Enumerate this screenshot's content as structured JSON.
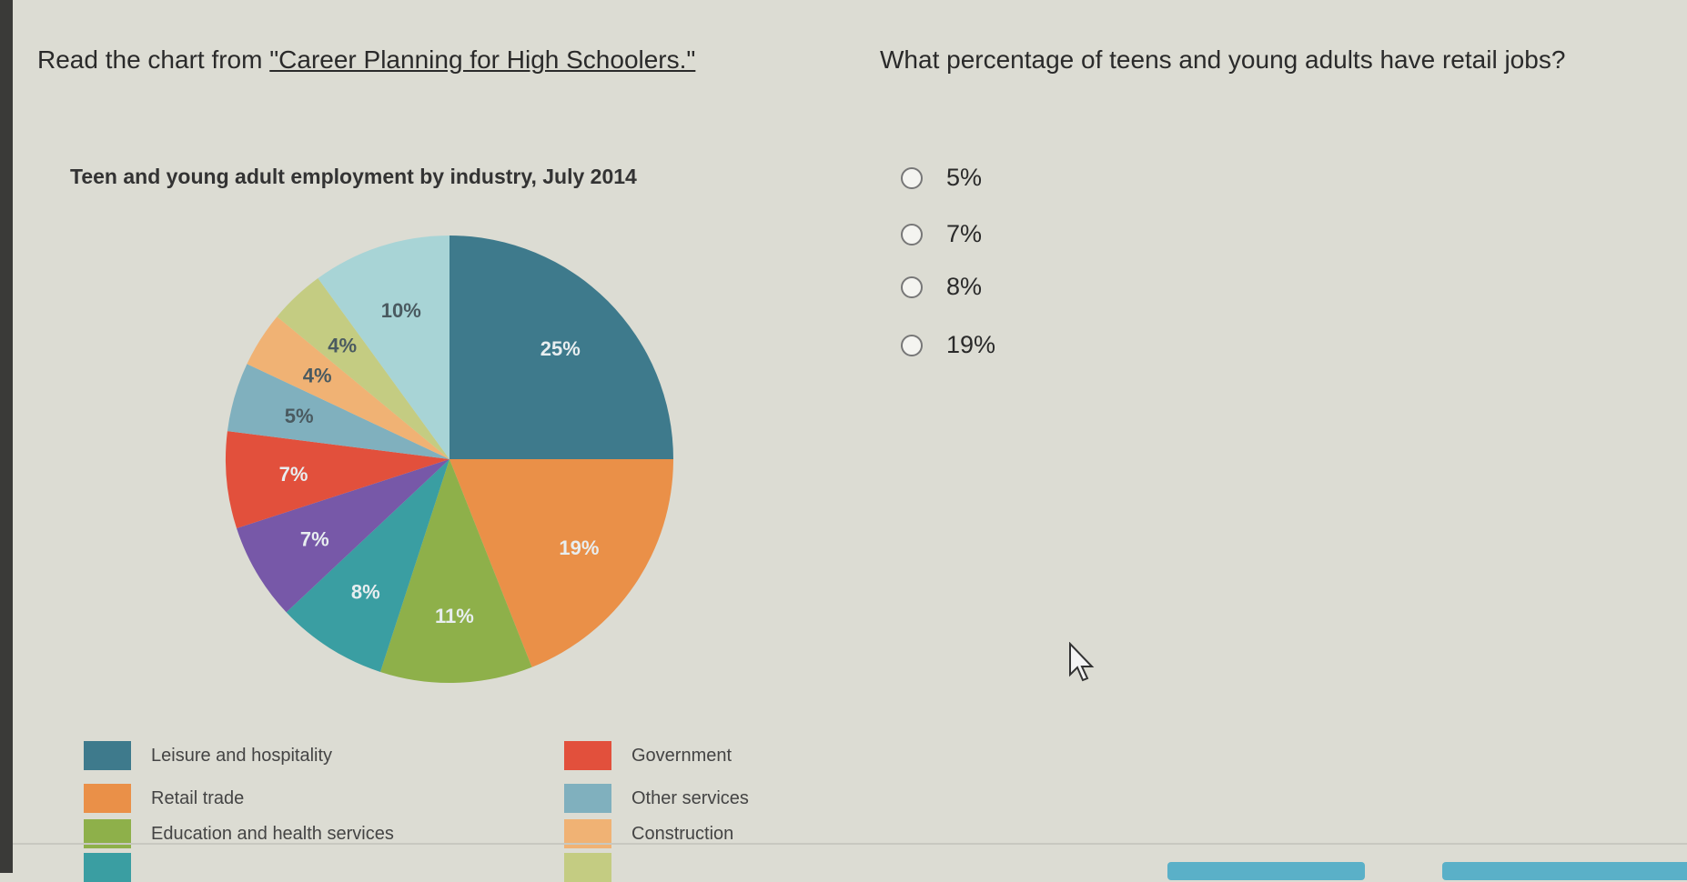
{
  "prompt": {
    "prefix": "Read the chart from ",
    "link": "\"Career Planning for High Schoolers.\""
  },
  "question": "What percentage of teens and young adults have retail jobs?",
  "options": [
    "5%",
    "7%",
    "8%",
    "19%"
  ],
  "chart_data": {
    "type": "pie",
    "title": "Teen and young adult employment by industry, July 2014",
    "slices": [
      {
        "name": "Leisure and hospitality",
        "value": 25,
        "label": "25%",
        "color": "#3e7a8c"
      },
      {
        "name": "Retail trade",
        "value": 19,
        "label": "19%",
        "color": "#ea9048"
      },
      {
        "name": "Education and health services",
        "value": 11,
        "label": "11%",
        "color": "#8eb04a"
      },
      {
        "name": "",
        "value": 8,
        "label": "8%",
        "color": "#3a9ea2"
      },
      {
        "name": "",
        "value": 7,
        "label": "7%",
        "color": "#7758a8"
      },
      {
        "name": "Government",
        "value": 7,
        "label": "7%",
        "color": "#e2503c"
      },
      {
        "name": "Other services",
        "value": 5,
        "label": "5%",
        "color": "#80b0be"
      },
      {
        "name": "Construction",
        "value": 4,
        "label": "4%",
        "color": "#f0b274"
      },
      {
        "name": "",
        "value": 4,
        "label": "4%",
        "color": "#c4cc82"
      },
      {
        "name": "",
        "value": 10,
        "label": "10%",
        "color": "#a8d4d6"
      }
    ],
    "legend": {
      "placement": "bottom",
      "entries": [
        {
          "label": "Leisure and hospitality",
          "color": "#3e7a8c"
        },
        {
          "label": "Government",
          "color": "#e2503c"
        },
        {
          "label": "Retail trade",
          "color": "#ea9048"
        },
        {
          "label": "Other services",
          "color": "#80b0be"
        },
        {
          "label": "Education and health services",
          "color": "#8eb04a"
        },
        {
          "label": "Construction",
          "color": "#f0b274"
        },
        {
          "label": "",
          "color": "#3a9ea2"
        },
        {
          "label": "",
          "color": "#c4cc82"
        }
      ]
    }
  },
  "colors": {
    "background": "#dcdcd3",
    "button": "#5ab0c8"
  }
}
